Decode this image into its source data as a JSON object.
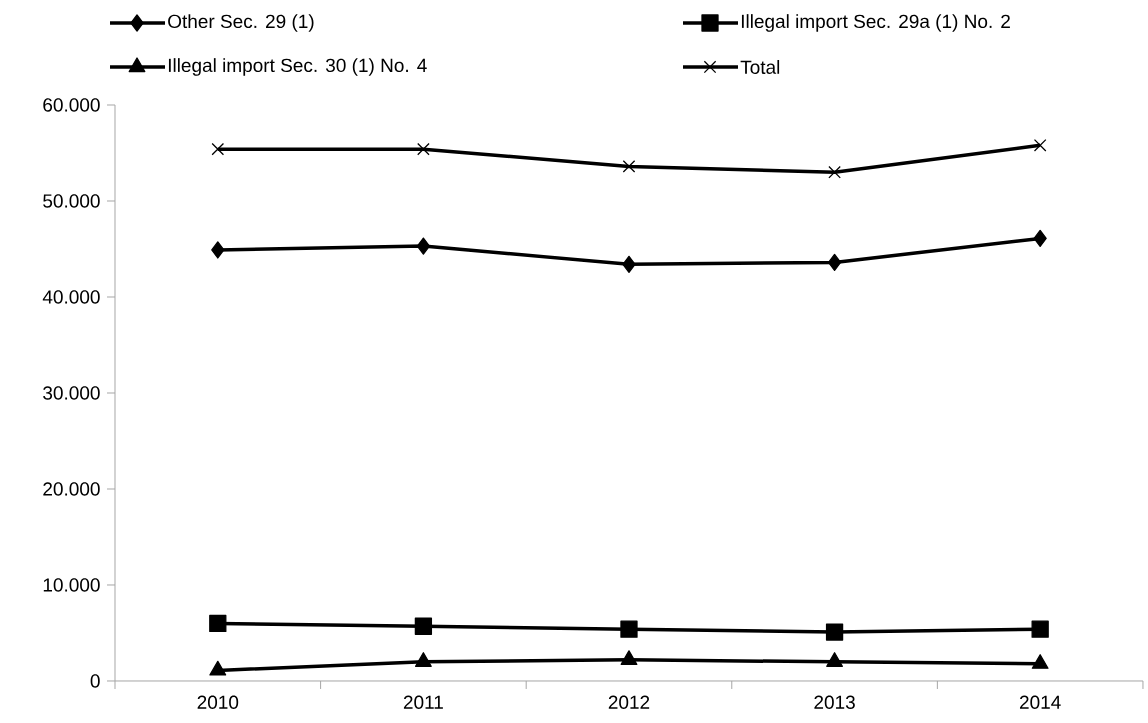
{
  "chart_data": {
    "type": "line",
    "categories": [
      "2010",
      "2011",
      "2012",
      "2013",
      "2014"
    ],
    "series": [
      {
        "name": "Other Sec. 29 (1)",
        "color": "#000000",
        "marker": "diamond",
        "values": [
          44900,
          45300,
          43400,
          43600,
          46100
        ]
      },
      {
        "name": "Illegal import Sec. 29a (1) No. 2",
        "color": "#000000",
        "marker": "square",
        "values": [
          6000,
          5700,
          5400,
          5100,
          5400
        ]
      },
      {
        "name": "Illegal import Sec. 30 (1) No. 4",
        "color": "#000000",
        "marker": "triangle",
        "values": [
          1100,
          2000,
          2200,
          2000,
          1800
        ]
      },
      {
        "name": "Total",
        "color": "#000000",
        "marker": "cross",
        "values": [
          55400,
          55400,
          53600,
          53000,
          55800
        ]
      }
    ],
    "ylim": [
      0,
      60000
    ],
    "yticks": [
      0,
      {
        "value": 10000,
        "label": "10.000"
      },
      {
        "value": 20000,
        "label": "20.000"
      },
      {
        "value": 30000,
        "label": "30.000"
      },
      {
        "value": 40000,
        "label": "40.000"
      },
      {
        "value": 50000,
        "label": "50.000"
      },
      {
        "value": 60000,
        "label": "60.000"
      }
    ],
    "legend": "top",
    "grid": false
  }
}
